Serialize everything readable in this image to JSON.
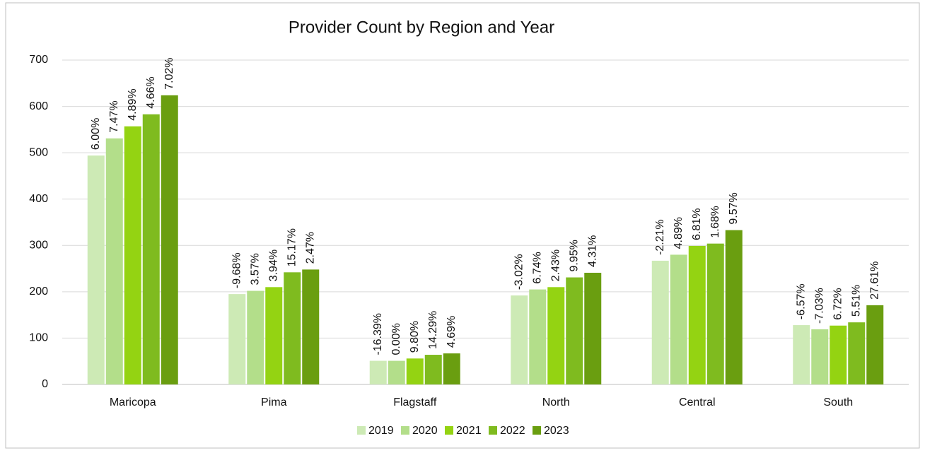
{
  "chart_data": {
    "type": "bar",
    "title": "Provider Count by Region and Year",
    "categories": [
      "Maricopa",
      "Pima",
      "Flagstaff",
      "North",
      "Central",
      "South"
    ],
    "series": [
      {
        "name": "2019",
        "color": "#cdeab5",
        "values": [
          494,
          195,
          51,
          192,
          267,
          128
        ],
        "value_labels": [
          "6.00%",
          "-9.68%",
          "-16.39%",
          "-3.02%",
          "-2.21%",
          "-6.57%"
        ]
      },
      {
        "name": "2020",
        "color": "#b3de8a",
        "values": [
          531,
          202,
          51,
          205,
          280,
          119
        ],
        "value_labels": [
          "7.47%",
          "3.57%",
          "0.00%",
          "6.74%",
          "4.89%",
          "-7.03%"
        ]
      },
      {
        "name": "2021",
        "color": "#94d312",
        "values": [
          557,
          210,
          56,
          210,
          299,
          127
        ],
        "value_labels": [
          "4.89%",
          "3.94%",
          "9.80%",
          "2.43%",
          "6.81%",
          "6.72%"
        ]
      },
      {
        "name": "2022",
        "color": "#7fbb1f",
        "values": [
          583,
          242,
          64,
          231,
          304,
          134
        ],
        "value_labels": [
          "4.66%",
          "15.17%",
          "14.29%",
          "9.95%",
          "1.68%",
          "5.51%"
        ]
      },
      {
        "name": "2023",
        "color": "#6a9e10",
        "values": [
          624,
          248,
          67,
          241,
          333,
          171
        ],
        "value_labels": [
          "7.02%",
          "2.47%",
          "4.69%",
          "4.31%",
          "9.57%",
          "27.61%"
        ]
      }
    ],
    "ylim": [
      0,
      700
    ],
    "yticks": [
      0,
      100,
      200,
      300,
      400,
      500,
      600,
      700
    ],
    "grid": true,
    "legend": "bottom"
  }
}
